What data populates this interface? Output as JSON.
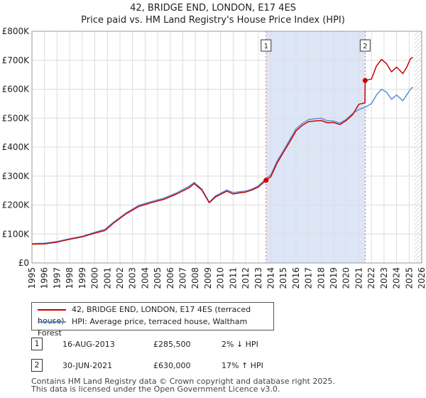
{
  "title_line1": "42, BRIDGE END, LONDON, E17 4ES",
  "title_line2": "Price paid vs. HM Land Registry's House Price Index (HPI)",
  "legend": {
    "property_label": "42, BRIDGE END, LONDON, E17 4ES (terraced house)",
    "hpi_label": "HPI: Average price, terraced house, Waltham Forest"
  },
  "colors": {
    "property": "#cc0000",
    "hpi": "#5b8fd6",
    "shade": "#dde6f7",
    "grid": "#dddddd",
    "vline": "#e06060"
  },
  "sales": [
    {
      "number": "1",
      "date": "16-AUG-2013",
      "price": "£285,500",
      "hpi_change": "2% ↓ HPI"
    },
    {
      "number": "2",
      "date": "30-JUN-2021",
      "price": "£630,000",
      "hpi_change": "17% ↑ HPI"
    }
  ],
  "footer_line1": "Contains HM Land Registry data © Crown copyright and database right 2025.",
  "footer_line2": "This data is licensed under the Open Government Licence v3.0.",
  "chart_data": {
    "type": "line",
    "xlim": [
      1995,
      2026
    ],
    "ylim": [
      0,
      800000
    ],
    "y_ticks": [
      {
        "value": 0,
        "label": "£0"
      },
      {
        "value": 100000,
        "label": "£100K"
      },
      {
        "value": 200000,
        "label": "£200K"
      },
      {
        "value": 300000,
        "label": "£300K"
      },
      {
        "value": 400000,
        "label": "£400K"
      },
      {
        "value": 500000,
        "label": "£500K"
      },
      {
        "value": 600000,
        "label": "£600K"
      },
      {
        "value": 700000,
        "label": "£700K"
      },
      {
        "value": 800000,
        "label": "£800K"
      }
    ],
    "x_ticks": [
      "1995",
      "1996",
      "1997",
      "1998",
      "1999",
      "2000",
      "2001",
      "2002",
      "2003",
      "2004",
      "2005",
      "2006",
      "2007",
      "2008",
      "2009",
      "2010",
      "2011",
      "2012",
      "2013",
      "2014",
      "2015",
      "2016",
      "2017",
      "2018",
      "2019",
      "2020",
      "2021",
      "2022",
      "2023",
      "2024",
      "2025",
      "2026"
    ],
    "grid": true,
    "shaded_period": [
      2013.62,
      2021.5
    ],
    "hatched_from": 2025.4,
    "series": [
      {
        "name": "42, BRIDGE END, LONDON, E17 4ES (terraced house)",
        "x": [
          1995.0,
          1996.0,
          1997.0,
          1998.0,
          1999.0,
          2000.0,
          2000.8,
          2001.5,
          2002.5,
          2003.5,
          2004.5,
          2005.5,
          2006.5,
          2007.5,
          2007.9,
          2008.5,
          2009.1,
          2009.6,
          2010.5,
          2011.0,
          2011.5,
          2012.0,
          2012.5,
          2013.0,
          2013.62,
          2014.0,
          2014.5,
          2015.0,
          2015.5,
          2016.0,
          2016.5,
          2017.0,
          2017.5,
          2018.0,
          2018.5,
          2019.0,
          2019.5,
          2020.0,
          2020.5,
          2021.0,
          2021.48,
          2021.5,
          2022.0,
          2022.4,
          2022.8,
          2023.2,
          2023.6,
          2024.0,
          2024.5,
          2024.8,
          2025.1,
          2025.3
        ],
        "y": [
          65000,
          66000,
          72000,
          82000,
          90000,
          103000,
          112000,
          138000,
          170000,
          195000,
          208000,
          220000,
          238000,
          260000,
          274000,
          252000,
          208000,
          228000,
          248000,
          238000,
          242000,
          245000,
          252000,
          262000,
          285500,
          298000,
          345000,
          382000,
          418000,
          456000,
          475000,
          488000,
          490000,
          492000,
          484000,
          485000,
          478000,
          492000,
          512000,
          548000,
          553000,
          630000,
          635000,
          680000,
          703000,
          688000,
          660000,
          676000,
          654000,
          675000,
          705000,
          710000
        ]
      },
      {
        "name": "HPI: Average price, terraced house, Waltham Forest",
        "x": [
          1995.0,
          1996.0,
          1997.0,
          1998.0,
          1999.0,
          2000.0,
          2000.8,
          2001.5,
          2002.5,
          2003.5,
          2004.5,
          2005.5,
          2006.5,
          2007.5,
          2007.9,
          2008.5,
          2009.1,
          2009.6,
          2010.5,
          2011.0,
          2011.5,
          2012.0,
          2012.5,
          2013.0,
          2013.62,
          2014.0,
          2014.5,
          2015.0,
          2015.5,
          2016.0,
          2016.5,
          2017.0,
          2017.5,
          2018.0,
          2018.5,
          2019.0,
          2019.5,
          2020.0,
          2020.5,
          2021.0,
          2021.5,
          2022.0,
          2022.4,
          2022.8,
          2023.2,
          2023.6,
          2024.0,
          2024.5,
          2024.8,
          2025.1,
          2025.3
        ],
        "y": [
          67000,
          68000,
          74000,
          84000,
          92000,
          106000,
          116000,
          141000,
          173000,
          199000,
          212000,
          224000,
          242000,
          265000,
          278000,
          256000,
          210000,
          232000,
          252000,
          243000,
          246000,
          248000,
          255000,
          266000,
          292000,
          305000,
          352000,
          388000,
          425000,
          463000,
          482000,
          495000,
          498000,
          500000,
          491000,
          490000,
          483000,
          496000,
          516000,
          530000,
          538000,
          550000,
          580000,
          600000,
          590000,
          565000,
          580000,
          560000,
          580000,
          600000,
          607000
        ]
      }
    ],
    "markers": [
      {
        "label": "1",
        "x": 2013.62,
        "y": 285500
      },
      {
        "label": "2",
        "x": 2021.5,
        "y": 630000
      }
    ]
  }
}
